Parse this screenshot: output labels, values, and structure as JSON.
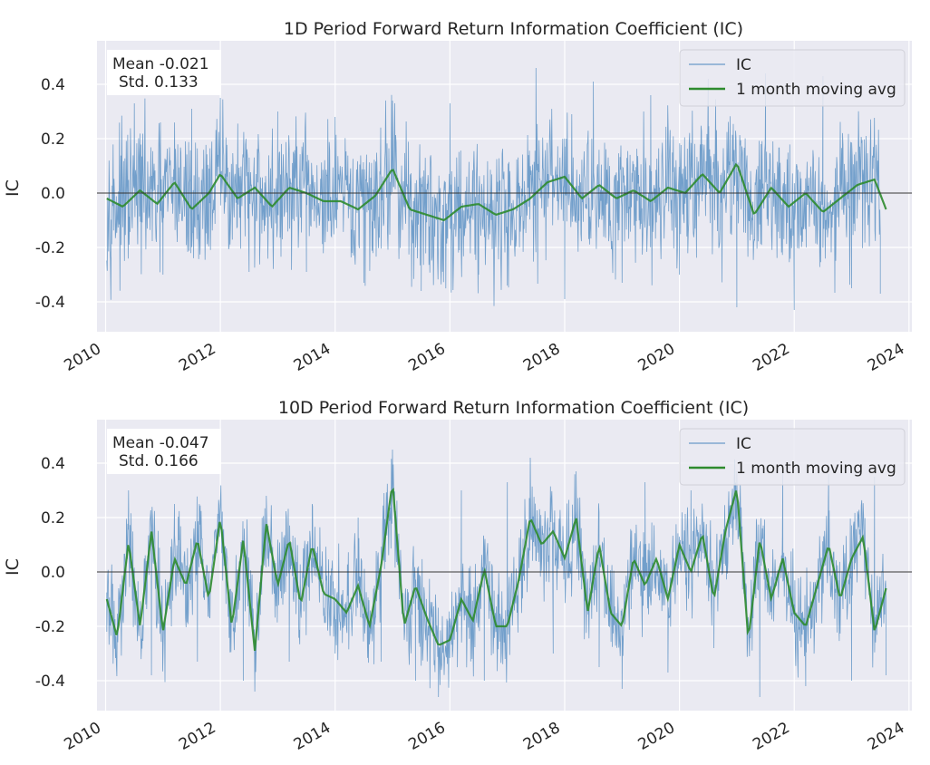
{
  "chart_data": [
    {
      "type": "line",
      "title": "1D Period Forward Return Information Coefficient (IC)",
      "ylabel": "IC",
      "xlabel": "",
      "xlim": [
        2009.85,
        2024.05
      ],
      "ylim": [
        -0.51,
        0.56
      ],
      "x_ticks": [
        2010,
        2012,
        2014,
        2016,
        2018,
        2020,
        2022,
        2024
      ],
      "y_ticks": [
        -0.4,
        -0.2,
        0.0,
        0.2,
        0.4
      ],
      "x_tick_labels": [
        "2010",
        "2012",
        "2014",
        "2016",
        "2018",
        "2020",
        "2022",
        "2024"
      ],
      "y_tick_labels": [
        "-0.4",
        "-0.2",
        "0.0",
        "0.2",
        "0.4"
      ],
      "grid": true,
      "legend_position": "top-right",
      "stats": {
        "mean": "Mean -0.021",
        "std": "Std. 0.133"
      },
      "zero_line": 0.0,
      "series": [
        {
          "name": "IC",
          "color": "#4a86be",
          "x": [
            2010.02,
            2010.5,
            2011.0,
            2011.5,
            2012.0,
            2012.5,
            2013.0,
            2013.5,
            2014.0,
            2014.5,
            2015.0,
            2015.5,
            2016.0,
            2016.5,
            2017.0,
            2017.5,
            2018.0,
            2018.5,
            2019.0,
            2019.5,
            2020.0,
            2020.5,
            2021.0,
            2021.5,
            2022.0,
            2022.5,
            2023.0,
            2023.5
          ],
          "values": [
            -0.25,
            0.33,
            -0.3,
            0.31,
            0.35,
            -0.29,
            0.3,
            -0.29,
            0.28,
            -0.33,
            0.34,
            -0.36,
            0.33,
            -0.3,
            -0.34,
            0.46,
            -0.39,
            0.41,
            -0.33,
            0.36,
            -0.3,
            0.42,
            -0.42,
            0.44,
            -0.43,
            0.43,
            -0.35,
            -0.37
          ]
        },
        {
          "name": "1 month moving avg",
          "color": "#2e8b2e",
          "x": [
            2010.02,
            2010.3,
            2010.6,
            2010.9,
            2011.2,
            2011.5,
            2011.8,
            2012.0,
            2012.3,
            2012.6,
            2012.9,
            2013.2,
            2013.5,
            2013.8,
            2014.1,
            2014.4,
            2014.7,
            2015.0,
            2015.3,
            2015.6,
            2015.9,
            2016.2,
            2016.5,
            2016.8,
            2017.1,
            2017.4,
            2017.7,
            2018.0,
            2018.3,
            2018.6,
            2018.9,
            2019.2,
            2019.5,
            2019.8,
            2020.1,
            2020.4,
            2020.7,
            2021.0,
            2021.3,
            2021.6,
            2021.9,
            2022.2,
            2022.5,
            2022.8,
            2023.1,
            2023.4,
            2023.6
          ],
          "values": [
            -0.02,
            -0.05,
            0.01,
            -0.04,
            0.04,
            -0.06,
            0.0,
            0.07,
            -0.02,
            0.02,
            -0.05,
            0.02,
            0.0,
            -0.03,
            -0.03,
            -0.06,
            -0.01,
            0.09,
            -0.06,
            -0.08,
            -0.1,
            -0.05,
            -0.04,
            -0.08,
            -0.06,
            -0.02,
            0.04,
            0.06,
            -0.02,
            0.03,
            -0.02,
            0.01,
            -0.03,
            0.02,
            0.0,
            0.07,
            0.0,
            0.11,
            -0.08,
            0.02,
            -0.05,
            0.0,
            -0.07,
            -0.02,
            0.03,
            0.05,
            -0.06
          ]
        }
      ]
    },
    {
      "type": "line",
      "title": "10D Period Forward Return Information Coefficient (IC)",
      "ylabel": "IC",
      "xlabel": "",
      "xlim": [
        2009.85,
        2024.05
      ],
      "ylim": [
        -0.51,
        0.56
      ],
      "x_ticks": [
        2010,
        2012,
        2014,
        2016,
        2018,
        2020,
        2022,
        2024
      ],
      "y_ticks": [
        -0.4,
        -0.2,
        0.0,
        0.2,
        0.4
      ],
      "x_tick_labels": [
        "2010",
        "2012",
        "2014",
        "2016",
        "2018",
        "2020",
        "2022",
        "2024"
      ],
      "y_tick_labels": [
        "-0.4",
        "-0.2",
        "0.0",
        "0.2",
        "0.4"
      ],
      "grid": true,
      "legend_position": "top-right",
      "stats": {
        "mean": "Mean -0.047",
        "std": "Std. 0.166"
      },
      "zero_line": 0.0,
      "series": [
        {
          "name": "IC",
          "color": "#4a86be",
          "x": [
            2010.02,
            2010.4,
            2010.8,
            2011.2,
            2011.6,
            2012.0,
            2012.4,
            2012.8,
            2013.2,
            2013.6,
            2014.0,
            2014.4,
            2014.8,
            2015.0,
            2015.4,
            2015.8,
            2016.2,
            2016.6,
            2017.0,
            2017.4,
            2017.8,
            2018.2,
            2018.6,
            2019.0,
            2019.4,
            2019.8,
            2020.2,
            2020.6,
            2021.0,
            2021.4,
            2021.8,
            2022.2,
            2022.6,
            2023.0,
            2023.4,
            2023.6
          ],
          "values": [
            -0.22,
            0.3,
            -0.38,
            0.25,
            -0.33,
            0.24,
            -0.4,
            0.28,
            -0.33,
            0.25,
            -0.3,
            0.2,
            -0.33,
            0.45,
            -0.4,
            -0.46,
            0.3,
            -0.4,
            0.33,
            0.42,
            -0.3,
            0.37,
            -0.35,
            -0.43,
            0.33,
            -0.37,
            0.3,
            -0.28,
            0.37,
            -0.46,
            0.38,
            -0.42,
            0.36,
            -0.4,
            0.35,
            -0.38
          ]
        },
        {
          "name": "1 month moving avg",
          "color": "#2e8b2e",
          "x": [
            2010.02,
            2010.2,
            2010.4,
            2010.6,
            2010.8,
            2011.0,
            2011.2,
            2011.4,
            2011.6,
            2011.8,
            2012.0,
            2012.2,
            2012.4,
            2012.6,
            2012.8,
            2013.0,
            2013.2,
            2013.4,
            2013.6,
            2013.8,
            2014.0,
            2014.2,
            2014.4,
            2014.6,
            2014.8,
            2015.0,
            2015.2,
            2015.4,
            2015.6,
            2015.8,
            2016.0,
            2016.2,
            2016.4,
            2016.6,
            2016.8,
            2017.0,
            2017.2,
            2017.4,
            2017.6,
            2017.8,
            2018.0,
            2018.2,
            2018.4,
            2018.6,
            2018.8,
            2019.0,
            2019.2,
            2019.4,
            2019.6,
            2019.8,
            2020.0,
            2020.2,
            2020.4,
            2020.6,
            2020.8,
            2021.0,
            2021.2,
            2021.4,
            2021.6,
            2021.8,
            2022.0,
            2022.2,
            2022.4,
            2022.6,
            2022.8,
            2023.0,
            2023.2,
            2023.4,
            2023.6
          ],
          "values": [
            -0.1,
            -0.24,
            0.11,
            -0.2,
            0.15,
            -0.22,
            0.05,
            -0.05,
            0.12,
            -0.1,
            0.2,
            -0.2,
            0.12,
            -0.29,
            0.18,
            -0.05,
            0.12,
            -0.12,
            0.1,
            -0.08,
            -0.1,
            -0.15,
            -0.05,
            -0.2,
            0.02,
            0.33,
            -0.2,
            -0.05,
            -0.17,
            -0.27,
            -0.25,
            -0.1,
            -0.18,
            0.01,
            -0.2,
            -0.2,
            -0.03,
            0.2,
            0.1,
            0.15,
            0.05,
            0.2,
            -0.15,
            0.1,
            -0.15,
            -0.2,
            0.05,
            -0.05,
            0.05,
            -0.1,
            0.1,
            0.0,
            0.14,
            -0.1,
            0.15,
            0.31,
            -0.25,
            0.12,
            -0.1,
            0.05,
            -0.15,
            -0.2,
            -0.05,
            0.1,
            -0.1,
            0.05,
            0.13,
            -0.22,
            -0.06
          ]
        }
      ]
    }
  ]
}
